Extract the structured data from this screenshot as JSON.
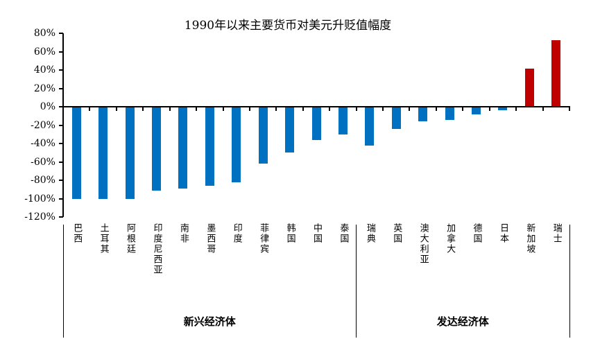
{
  "chart_data": {
    "type": "bar",
    "title": "1990年以来主要货币对美元升贬值幅度",
    "categories": [
      "巴西",
      "土耳其",
      "阿根廷",
      "印度尼西亚",
      "南非",
      "墨西哥",
      "印度",
      "菲律宾",
      "韩国",
      "中国",
      "泰国",
      "瑞典",
      "英国",
      "澳大利亚",
      "加拿大",
      "德国",
      "日本",
      "新加坡",
      "瑞士"
    ],
    "values": [
      -100,
      -100,
      -100,
      -91,
      -89,
      -86,
      -82,
      -62,
      -50,
      -36,
      -30,
      -42,
      -24,
      -16,
      -14,
      -8,
      -4,
      41,
      72
    ],
    "groups": [
      {
        "label": "新兴经济体",
        "start": 0,
        "end": 10
      },
      {
        "label": "发达经济体",
        "start": 11,
        "end": 18
      }
    ],
    "y_tick_labels": [
      "80%",
      "60%",
      "40%",
      "20%",
      "0%",
      "-20%",
      "-40%",
      "-60%",
      "-80%",
      "-100%",
      "-120%"
    ],
    "ylim": [
      -120,
      80
    ],
    "ylabel": "",
    "xlabel": "",
    "grid": false,
    "legend_position": "none",
    "colors": {
      "depreciation_bar": "#0070C0",
      "appreciation_bar": "#C00000",
      "axis": "#000000"
    }
  }
}
